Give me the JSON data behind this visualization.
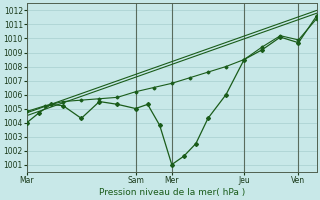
{
  "xlabel": "Pression niveau de la mer( hPa )",
  "bg_color": "#c8e8e8",
  "grid_color": "#b8d8d8",
  "line_color": "#1a5c1a",
  "xlim": [
    0,
    96
  ],
  "ylim": [
    1000.5,
    1012.5
  ],
  "yticks": [
    1001,
    1002,
    1003,
    1004,
    1005,
    1006,
    1007,
    1008,
    1009,
    1010,
    1011,
    1012
  ],
  "xtick_positions": [
    0,
    36,
    48,
    72,
    90
  ],
  "xtick_labels": [
    "Mar",
    "Sam",
    "Mer",
    "Jeu",
    "Ven"
  ],
  "vline_positions": [
    0,
    36,
    48,
    72,
    90
  ],
  "jagged_line": {
    "x": [
      0,
      4,
      8,
      12,
      18,
      24,
      30,
      36,
      40,
      44,
      48,
      52,
      56,
      60,
      66,
      72,
      78,
      84,
      90,
      96
    ],
    "y": [
      1004.0,
      1004.7,
      1005.3,
      1005.2,
      1004.3,
      1005.5,
      1005.3,
      1005.0,
      1005.3,
      1003.8,
      1001.0,
      1001.6,
      1002.5,
      1004.3,
      1006.0,
      1008.5,
      1009.2,
      1010.1,
      1009.7,
      1011.6
    ]
  },
  "trend_line1": {
    "x": [
      0,
      96
    ],
    "y": [
      1004.5,
      1011.8
    ]
  },
  "trend_line2": {
    "x": [
      0,
      96
    ],
    "y": [
      1004.7,
      1012.0
    ]
  },
  "upper_line": {
    "x": [
      0,
      6,
      12,
      18,
      24,
      30,
      36,
      42,
      48,
      54,
      60,
      66,
      72,
      78,
      84,
      90,
      96
    ],
    "y": [
      1004.8,
      1005.2,
      1005.5,
      1005.6,
      1005.7,
      1005.8,
      1006.2,
      1006.5,
      1006.8,
      1007.2,
      1007.6,
      1008.0,
      1008.5,
      1009.4,
      1010.2,
      1009.9,
      1011.4
    ]
  }
}
